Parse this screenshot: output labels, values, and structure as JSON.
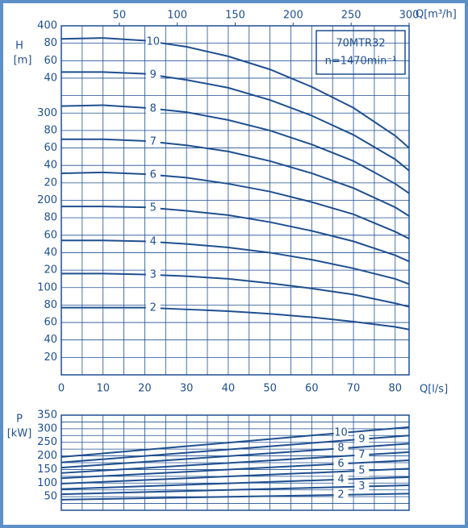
{
  "chart_data": [
    {
      "type": "line",
      "ylabel": "H",
      "yunit": "[m]",
      "xlabel": "Q[l/s]",
      "x2label": "Q[m³/h]",
      "annotations": [
        "70MTR32",
        "n=1470min⁻¹"
      ],
      "x": [
        0,
        10,
        20,
        30,
        40,
        50,
        60,
        70,
        80,
        83.33
      ],
      "xlim": [
        0,
        83.33
      ],
      "ylim": [
        0,
        400
      ],
      "xticks": [
        0,
        10,
        20,
        30,
        40,
        50,
        60,
        70,
        80
      ],
      "xminor": [
        5,
        15,
        25,
        35,
        45,
        55,
        65,
        75
      ],
      "x2lim": [
        0,
        300
      ],
      "x2ticks": [
        50,
        100,
        150,
        200,
        250,
        300
      ],
      "yticks": [
        {
          "value": 20,
          "label": "20"
        },
        {
          "value": 40,
          "label": "40"
        },
        {
          "value": 60,
          "label": "60"
        },
        {
          "value": 80,
          "label": "80"
        },
        100,
        {
          "value": 120,
          "label": "20"
        },
        {
          "value": 140,
          "label": "40"
        },
        {
          "value": 160,
          "label": "60"
        },
        {
          "value": 180,
          "label": "80"
        },
        200,
        {
          "value": 220,
          "label": "20"
        },
        {
          "value": 240,
          "label": "40"
        },
        {
          "value": 260,
          "label": "60"
        },
        {
          "value": 280,
          "label": "80"
        },
        300,
        {
          "value": 320,
          "label": null
        },
        {
          "value": 340,
          "label": "40"
        },
        {
          "value": 360,
          "label": "60"
        },
        {
          "value": 380,
          "label": "80"
        },
        400
      ],
      "color": "#1f4f8f",
      "grid": true,
      "series": [
        {
          "name": "10",
          "values": [
            385,
            386,
            383,
            376,
            365,
            350,
            330,
            306,
            274,
            260
          ]
        },
        {
          "name": "9",
          "values": [
            347,
            347,
            345,
            338,
            329,
            315,
            297,
            275,
            247,
            234
          ]
        },
        {
          "name": "8",
          "values": [
            308,
            309,
            306,
            301,
            292,
            280,
            264,
            245,
            219,
            208
          ]
        },
        {
          "name": "7",
          "values": [
            270,
            270,
            268,
            263,
            256,
            245,
            231,
            214,
            192,
            182
          ]
        },
        {
          "name": "6",
          "values": [
            231,
            232,
            230,
            226,
            219,
            210,
            198,
            184,
            164,
            156
          ]
        },
        {
          "name": "5",
          "values": [
            193,
            193,
            192,
            188,
            183,
            175,
            165,
            153,
            137,
            130
          ]
        },
        {
          "name": "4",
          "values": [
            154,
            154,
            153,
            150,
            146,
            140,
            132,
            122,
            110,
            104
          ]
        },
        {
          "name": "3",
          "values": [
            116,
            116,
            115,
            113,
            110,
            105,
            99,
            92,
            82,
            78
          ]
        },
        {
          "name": "2",
          "values": [
            77,
            77,
            77,
            75,
            73,
            70,
            66,
            61,
            55,
            52
          ]
        }
      ]
    },
    {
      "type": "line",
      "ylabel": "P",
      "yunit": "[kW]",
      "x": [
        0,
        83.33
      ],
      "xlim": [
        0,
        83.33
      ],
      "ylim": [
        0,
        350
      ],
      "xticks": [
        0,
        10,
        20,
        30,
        40,
        50,
        60,
        70,
        80
      ],
      "xminor": [
        5,
        15,
        25,
        35,
        45,
        55,
        65,
        75
      ],
      "yticks": [
        50,
        100,
        150,
        200,
        250,
        300,
        350
      ],
      "yminor": [
        25,
        75,
        125,
        175,
        225,
        275,
        325
      ],
      "color": "#1f4f8f",
      "grid": true,
      "series": [
        {
          "name": "10",
          "values": [
            196,
            306
          ]
        },
        {
          "name": "9",
          "values": [
            176,
            275
          ]
        },
        {
          "name": "8",
          "values": [
            157,
            245
          ]
        },
        {
          "name": "7",
          "values": [
            137,
            214
          ]
        },
        {
          "name": "6",
          "values": [
            118,
            184
          ]
        },
        {
          "name": "5",
          "values": [
            98,
            153
          ]
        },
        {
          "name": "4",
          "values": [
            78,
            122
          ]
        },
        {
          "name": "3",
          "values": [
            59,
            92
          ]
        },
        {
          "name": "2",
          "values": [
            39,
            61
          ]
        }
      ]
    }
  ]
}
